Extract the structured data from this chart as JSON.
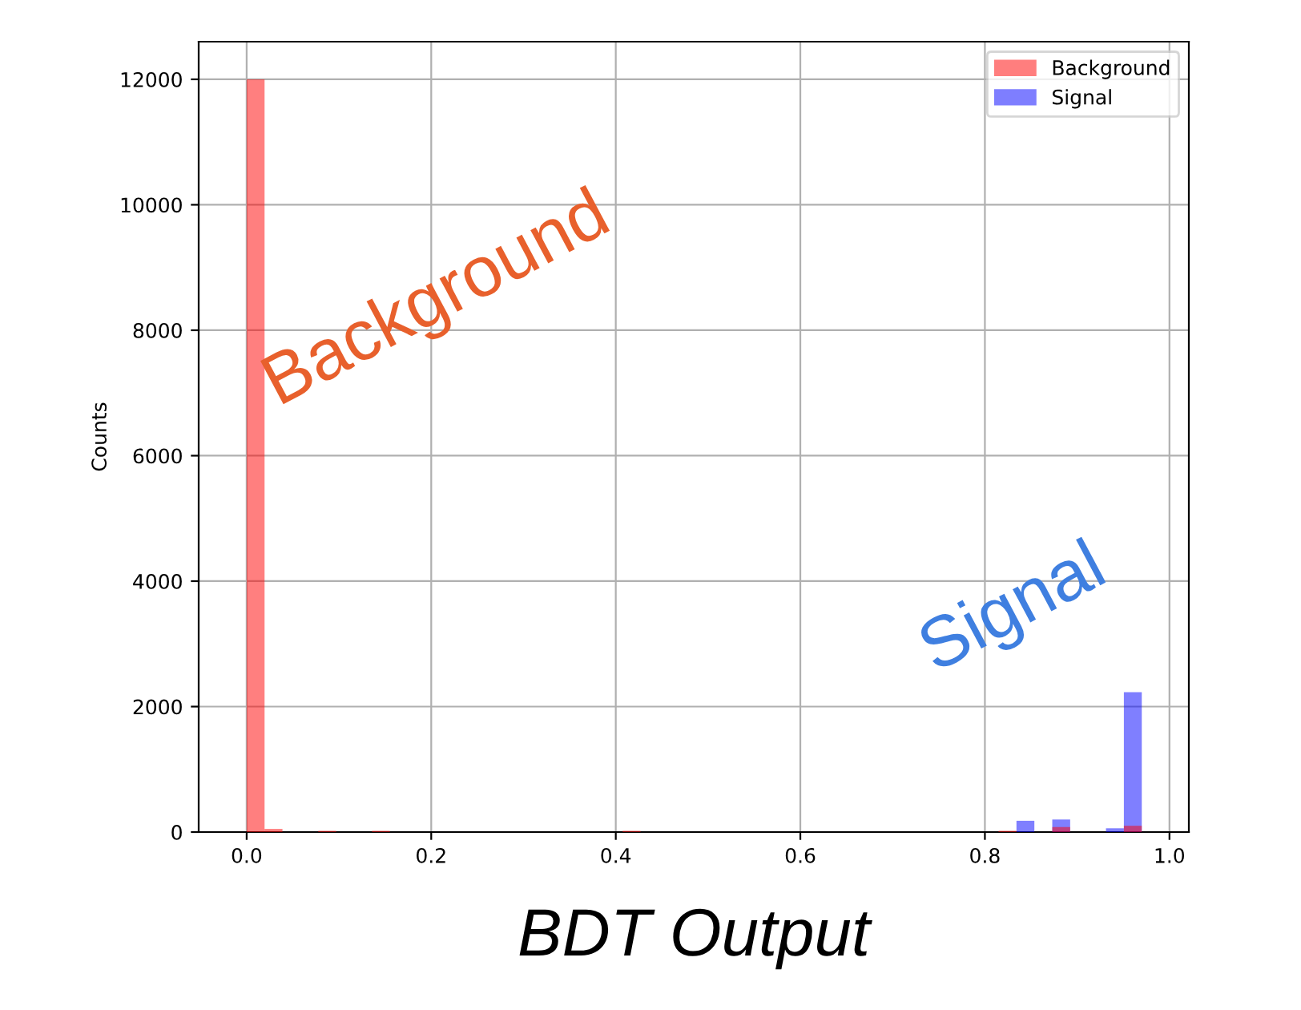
{
  "chart_data": {
    "type": "histogram",
    "xlabel": "BDT Output",
    "ylabel": "Counts",
    "bins": [
      0,
      0.0194,
      0.0388,
      0.0582,
      0.0776,
      0.097,
      0.1164,
      0.1358,
      0.1552,
      0.1746,
      0.194,
      0.2134,
      0.2328,
      0.2522,
      0.2716,
      0.291,
      0.3104,
      0.3298,
      0.3492,
      0.3686,
      0.388,
      0.4074,
      0.4268,
      0.4462,
      0.4656,
      0.485,
      0.5044,
      0.5238,
      0.5432,
      0.5626,
      0.582,
      0.6014,
      0.6208,
      0.6402,
      0.6596,
      0.679,
      0.6984,
      0.7178,
      0.7372,
      0.7566,
      0.776,
      0.7954,
      0.8148,
      0.8342,
      0.8536,
      0.873,
      0.8924,
      0.9118,
      0.9312,
      0.9506,
      0.97
    ],
    "series": [
      {
        "name": "Background",
        "color": "#ff0000",
        "values": [
          12000,
          50,
          0,
          0,
          20,
          0,
          0,
          20,
          0,
          0,
          0,
          0,
          0,
          0,
          0,
          0,
          0,
          0,
          0,
          0,
          0,
          20,
          0,
          0,
          0,
          0,
          0,
          0,
          0,
          0,
          0,
          0,
          0,
          0,
          0,
          0,
          0,
          0,
          0,
          0,
          0,
          0,
          20,
          0,
          0,
          80,
          0,
          0,
          0,
          100
        ]
      },
      {
        "name": "Signal",
        "color": "#0000ff",
        "values": [
          0,
          0,
          0,
          0,
          0,
          0,
          0,
          0,
          0,
          0,
          0,
          0,
          0,
          0,
          0,
          0,
          0,
          0,
          0,
          0,
          0,
          0,
          0,
          0,
          0,
          0,
          0,
          0,
          0,
          0,
          0,
          0,
          0,
          0,
          0,
          0,
          0,
          0,
          0,
          0,
          0,
          0,
          0,
          180,
          0,
          200,
          0,
          0,
          60,
          2230
        ]
      }
    ],
    "xlim": [
      -0.052,
      1.021
    ],
    "xticks": [
      {
        "value": 0,
        "label": "0.0"
      },
      0.2,
      0.4,
      0.6,
      0.8,
      {
        "value": 1,
        "label": "1.0"
      }
    ],
    "ylim": [
      0,
      12600
    ],
    "yticks": [
      0,
      2000,
      4000,
      6000,
      8000,
      10000,
      12000
    ],
    "grid": true,
    "legend": "top right",
    "annotations": [
      "Background",
      "Signal"
    ]
  }
}
